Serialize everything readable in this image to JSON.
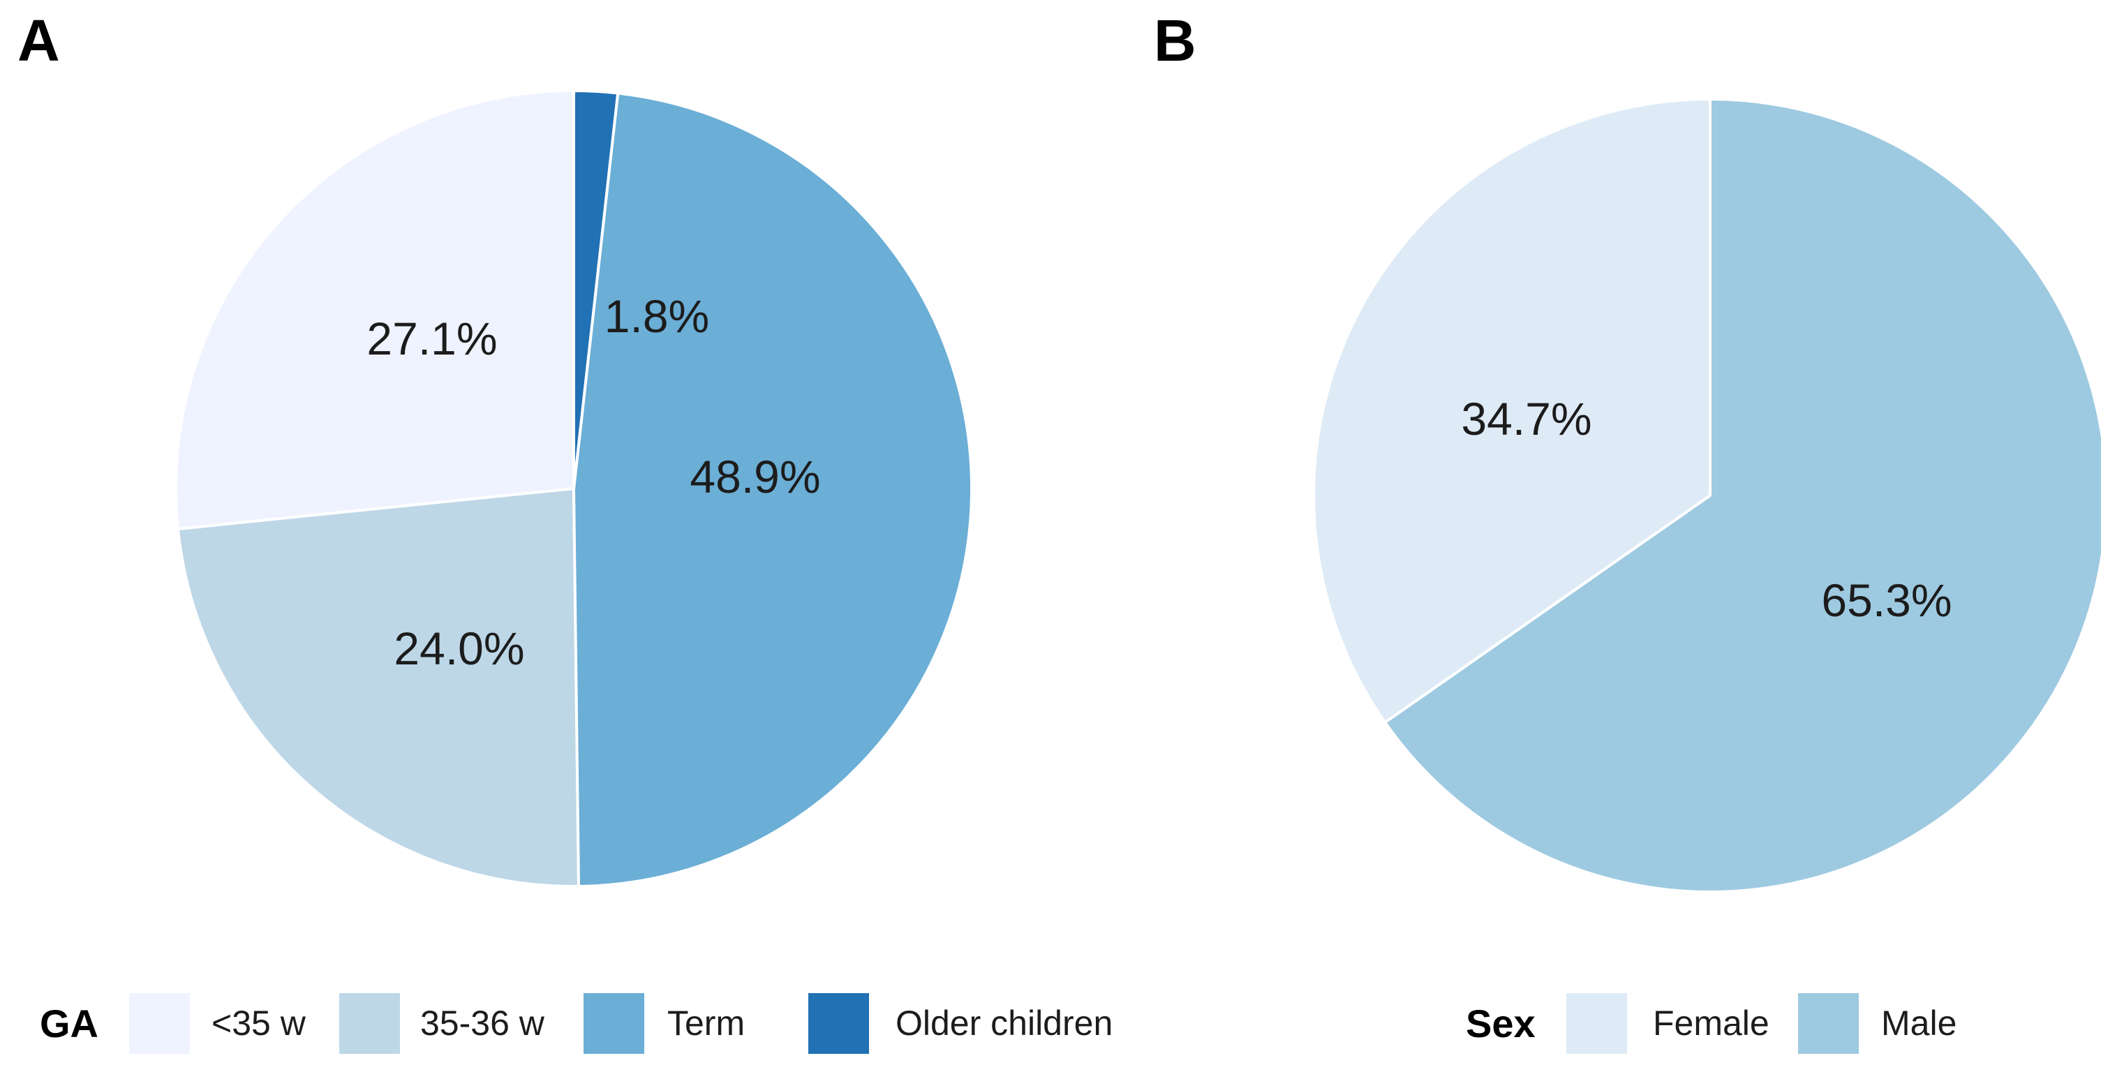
{
  "figure": {
    "background": "#ffffff",
    "text_color": "#1c1c1c"
  },
  "panels": [
    {
      "label": "A",
      "legend_title": "GA",
      "slices": [
        {
          "label": "<35 w",
          "value": 27.1,
          "display": "27.1%",
          "color": "#EFF3FF"
        },
        {
          "label": "35-36 w",
          "value": 24.0,
          "display": "24.0%",
          "color": "#BDD7E7"
        },
        {
          "label": "Term",
          "value": 48.9,
          "display": "48.9%",
          "color": "#6BAED6"
        },
        {
          "label": "Older children",
          "value": 1.8,
          "display": "1.8%",
          "color": "#2171B5"
        }
      ]
    },
    {
      "label": "B",
      "legend_title": "Sex",
      "slices": [
        {
          "label": "Female",
          "value": 34.7,
          "display": "34.7%",
          "color": "#DEEBF7"
        },
        {
          "label": "Male",
          "value": 65.3,
          "display": "65.3%",
          "color": "#9ECAE1"
        }
      ]
    }
  ],
  "chart_data": [
    {
      "type": "pie",
      "panel": "A",
      "legend_title": "GA",
      "labels": [
        "<35 w",
        "35-36 w",
        "Term",
        "Older children"
      ],
      "values": [
        27.1,
        24.0,
        48.9,
        1.8
      ],
      "data_labels": [
        "27.1%",
        "24.0%",
        "48.9%",
        "1.8%"
      ],
      "unit": "percent",
      "colors": [
        "#EFF3FF",
        "#BDD7E7",
        "#6BAED6",
        "#2171B5"
      ],
      "start_angle_deg": 0,
      "direction": "counterclockwise",
      "slice_border_color": "#ffffff",
      "legend_position": "bottom"
    },
    {
      "type": "pie",
      "panel": "B",
      "legend_title": "Sex",
      "labels": [
        "Female",
        "Male"
      ],
      "values": [
        34.7,
        65.3
      ],
      "data_labels": [
        "34.7%",
        "65.3%"
      ],
      "unit": "percent",
      "colors": [
        "#DEEBF7",
        "#9ECAE1"
      ],
      "start_angle_deg": 0,
      "direction": "counterclockwise",
      "slice_border_color": "#ffffff",
      "legend_position": "bottom"
    }
  ]
}
